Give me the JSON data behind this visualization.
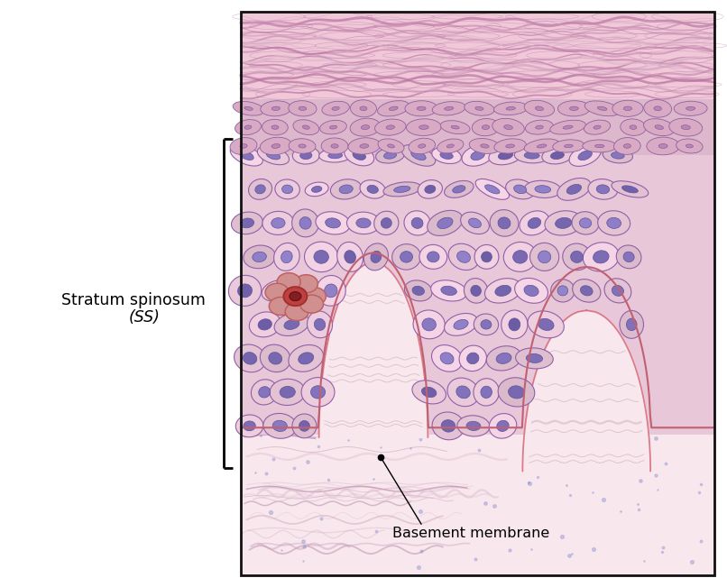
{
  "figure_width": 8.06,
  "figure_height": 6.51,
  "dpi": 100,
  "bg_color": "#ffffff",
  "label_text": "Stratum spinosum",
  "label_italic": "(SS)",
  "basement_label": "Basement membrane",
  "colors": {
    "dermis_bg": "#f8e8ee",
    "epi_bg": "#e8c8d8",
    "gran_bg": "#ddb8cc",
    "corn_bg": "#f0c8d8",
    "cell_border": "#9060a8",
    "nucleus_base": [
      128,
      112,
      184
    ],
    "cell_base": [
      232,
      200,
      216
    ],
    "highlight_red": "#c04040",
    "highlight_dark": "#802020",
    "highlight_surround": "#d09090",
    "basement_line": "#c06070",
    "papilla_fill": "#f8e8ee",
    "papilla_border": "#d46070",
    "dermis_fiber": [
      "#c8a0b8",
      "#b888a8",
      "#d4b0c4",
      "#e0c0d0"
    ],
    "corn_lines": [
      "#b870a0",
      "#c888b0",
      "#d0a0bc",
      "#e0b8cc"
    ]
  }
}
